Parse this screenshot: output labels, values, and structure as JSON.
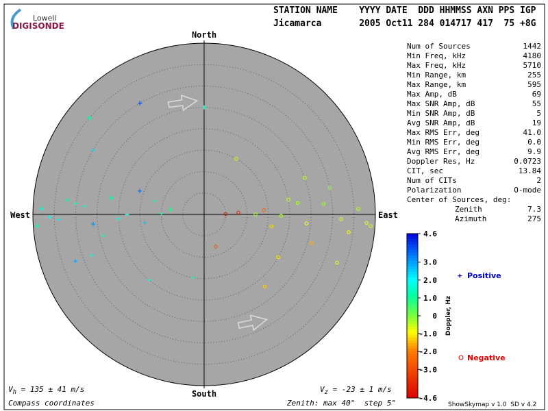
{
  "logo": {
    "top": "Lowell",
    "bottom": "DIGISONDE"
  },
  "header": {
    "line1": "STATION NAME    YYYY DATE  DDD HHMMSS AXN PPS IGP",
    "line2": "Jicamarca       2005 Oct11 284 014717 417  75 +8G"
  },
  "stats": [
    {
      "label": "Num of Sources",
      "value": "1442"
    },
    {
      "label": "Min Freq, kHz",
      "value": "4180"
    },
    {
      "label": "Max Freq, kHz",
      "value": "5710"
    },
    {
      "label": "Min Range, km",
      "value": "255"
    },
    {
      "label": "Max Range, km",
      "value": "595"
    },
    {
      "label": "Max Amp, dB",
      "value": "69"
    },
    {
      "label": "Max SNR Amp, dB",
      "value": "55"
    },
    {
      "label": "Min SNR Amp, dB",
      "value": "5"
    },
    {
      "label": "Avg SNR Amp, dB",
      "value": "19"
    },
    {
      "label": "Max RMS Err, deg",
      "value": "41.0"
    },
    {
      "label": "Min RMS Err, deg",
      "value": "0.0"
    },
    {
      "label": "Avg RMS Err, deg",
      "value": "9.9"
    },
    {
      "label": "Doppler Res, Hz",
      "value": "0.0723"
    },
    {
      "label": "CIT, sec",
      "value": "13.84"
    },
    {
      "label": "Num of CITs",
      "value": "2"
    },
    {
      "label": "Polarization",
      "value": "O-mode"
    }
  ],
  "center": {
    "title": "Center of Sources, deg:",
    "rows": [
      {
        "label": "Zenith",
        "value": "7.3"
      },
      {
        "label": "Azimuth",
        "value": "275"
      }
    ]
  },
  "legend": {
    "positive": "Positive",
    "negative": "Negative"
  },
  "footer": {
    "vh_symbol": "V",
    "vh_sub": "h",
    "vh_text": " = 135 ± 41 m/s",
    "vz_symbol": "V",
    "vz_sub": "z",
    "vz_text": " = -23 ± 1 m/s",
    "coords": "Compass coordinates",
    "zenith": "Zenith: max 40°  step 5°",
    "version": "ShowSkymap v 1.0  SD v 4.2"
  },
  "chart_data": {
    "type": "skymap",
    "directions": {
      "north": "North",
      "south": "South",
      "west": "West",
      "east": "East"
    },
    "zenith_max": 40,
    "zenith_step": 5,
    "points": {
      "azimuth": [
        272,
        268,
        275,
        265,
        280,
        270,
        262,
        285,
        274,
        269,
        258,
        290,
        276,
        267,
        271,
        300,
        250,
        310,
        278,
        266,
        88,
        92,
        85,
        95,
        80,
        100,
        90,
        87,
        93,
        78,
        105,
        83,
        97,
        91,
        86,
        120,
        70,
        110,
        89,
        94,
        330,
        0,
        190,
        140,
        220,
        30,
        160,
        250
      ],
      "zenith": [
        38,
        34,
        30,
        26,
        22,
        18,
        14,
        12,
        28,
        36,
        24,
        16,
        32,
        20,
        10,
        30,
        28,
        35,
        8,
        39,
        36,
        32,
        28,
        24,
        20,
        16,
        12,
        8,
        38,
        30,
        26,
        22,
        34,
        18,
        14,
        20,
        25,
        33,
        5,
        39,
        30,
        25,
        15,
        22,
        20,
        15,
        8,
        32
      ],
      "doppler": [
        1.5,
        2.2,
        1.2,
        3.1,
        1.4,
        1.8,
        2.6,
        1.0,
        1.6,
        2.0,
        1.3,
        3.5,
        1.1,
        1.9,
        0.8,
        2.4,
        1.7,
        1.2,
        0.9,
        1.4,
        -0.4,
        -0.6,
        -0.2,
        -0.9,
        -0.5,
        -1.2,
        -0.3,
        -3.8,
        -0.7,
        -0.1,
        -1.6,
        -0.4,
        -0.8,
        -0.3,
        -2.5,
        -1.1,
        -0.5,
        -0.9,
        -4.0,
        -0.6,
        3.8,
        1.5,
        1.2,
        -1.3,
        1.6,
        -0.5,
        -2.8,
        2.9
      ]
    },
    "colorbar": {
      "label": "Doppler, Hz",
      "lim": [
        -4.6,
        4.6
      ],
      "ticks": [
        4.6,
        {
          "value": 3,
          "label": "3.0"
        },
        {
          "value": 2,
          "label": "2.0"
        },
        {
          "value": 1,
          "label": "1.0"
        },
        0,
        {
          "value": -1,
          "label": "-1.0"
        },
        {
          "value": -2,
          "label": "-2.0"
        },
        {
          "value": -3,
          "label": "-3.0"
        },
        -4.6
      ]
    }
  }
}
